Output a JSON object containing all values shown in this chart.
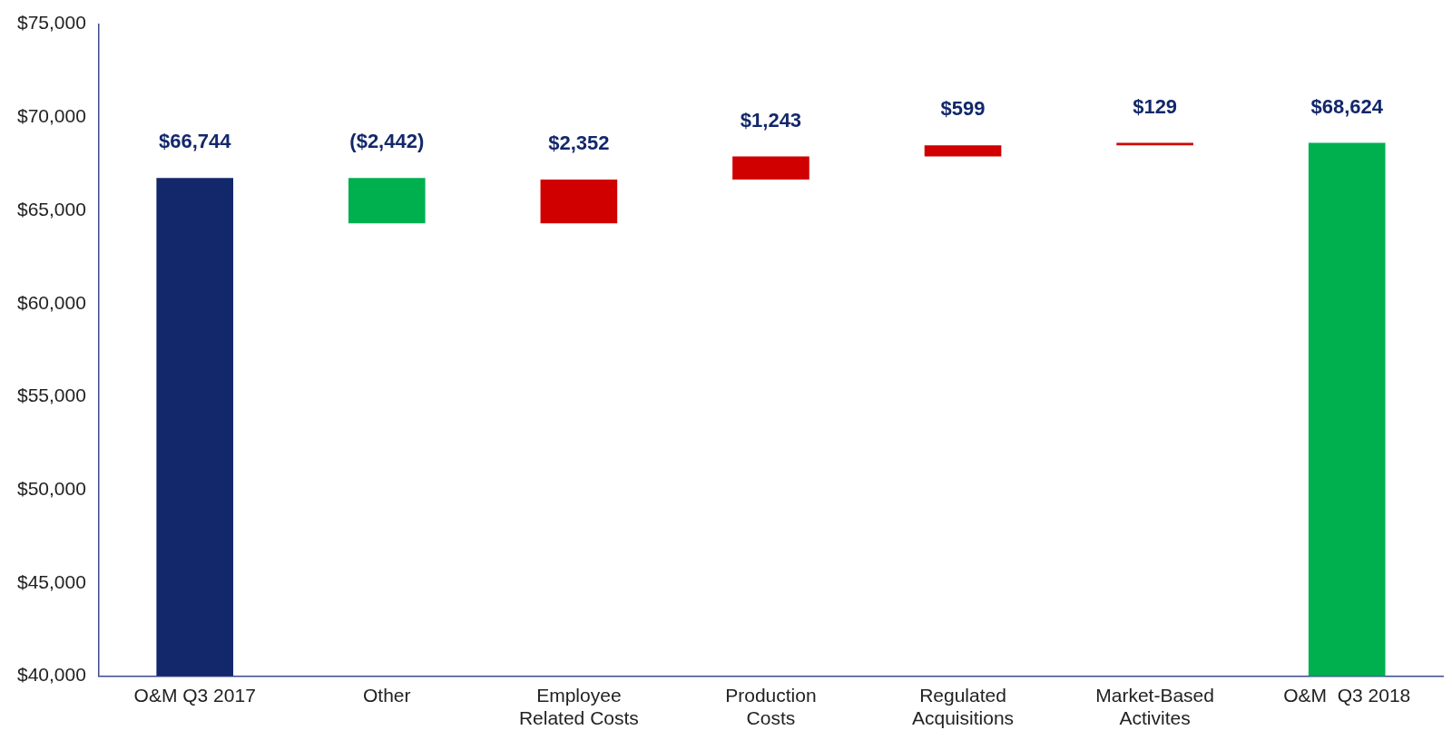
{
  "chart_data": {
    "type": "bar",
    "categories": [
      "O&M Q3 2017",
      "Other",
      "Employee Related Costs",
      "Production Costs",
      "Regulated Acquisitions",
      "Market-Based Activites",
      "O&M  Q3 2018"
    ],
    "values": [
      66744,
      -2442,
      2352,
      1243,
      599,
      129,
      68624
    ],
    "base": [
      0,
      66744,
      64302,
      66654,
      67897,
      68496,
      0
    ],
    "colors": [
      "#13286b",
      "#00b04f",
      "#d00000",
      "#d00000",
      "#d00000",
      "#d00000",
      "#00b04f"
    ],
    "value_labels": [
      "$66,744",
      "($2,442)",
      "$2,352",
      "$1,243",
      "$599",
      "$129",
      "$68,624"
    ],
    "ylim": [
      40000,
      75000
    ],
    "yticks": [
      {
        "value": 40000,
        "label": "$40,000"
      },
      {
        "value": 45000,
        "label": "$45,000"
      },
      {
        "value": 50000,
        "label": "$50,000"
      },
      {
        "value": 55000,
        "label": "$55,000"
      },
      {
        "value": 60000,
        "label": "$60,000"
      },
      {
        "value": 65000,
        "label": "$65,000"
      },
      {
        "value": 70000,
        "label": "$70,000"
      },
      {
        "value": 75000,
        "label": "$75,000"
      }
    ],
    "grid": false,
    "legend": false
  }
}
